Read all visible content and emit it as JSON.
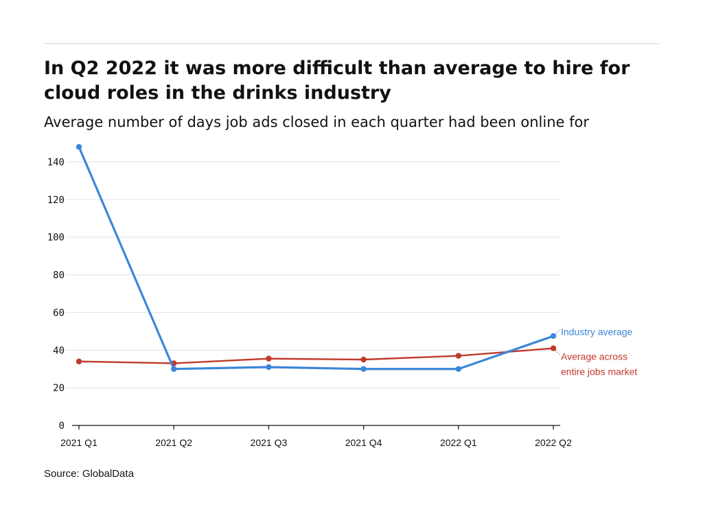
{
  "header": {
    "title": "In Q2 2022 it was more difficult than average to hire for cloud roles in the drinks industry",
    "subtitle": "Average number of days job ads closed in each quarter had been online for"
  },
  "footer": {
    "source": "Source: GlobalData"
  },
  "colors": {
    "industry": "#3a86d9",
    "market": "#c0392b",
    "grid": "#e0e0e0",
    "axis": "#111111"
  },
  "chart_data": {
    "type": "line",
    "title": "In Q2 2022 it was more difficult than average to hire for cloud roles in the drinks industry",
    "subtitle": "Average number of days job ads closed in each quarter had been online for",
    "categories": [
      "2021 Q1",
      "2021 Q2",
      "2021 Q3",
      "2021 Q4",
      "2022 Q1",
      "2022 Q2"
    ],
    "series": [
      {
        "name": "Industry average",
        "color": "#3a86d9",
        "values": [
          148,
          30,
          31,
          30,
          30,
          47.5
        ]
      },
      {
        "name": "Average across entire jobs market",
        "label_lines": [
          "Average across",
          "entire jobs market"
        ],
        "color": "#c0392b",
        "values": [
          34,
          33,
          35.5,
          35,
          37,
          41
        ]
      }
    ],
    "ylim": [
      0,
      140
    ],
    "yticks": [
      0,
      20,
      40,
      60,
      80,
      100,
      120,
      140
    ],
    "grid": true,
    "legend": "direct labels at line ends (right)",
    "xlabel": "",
    "ylabel": ""
  }
}
